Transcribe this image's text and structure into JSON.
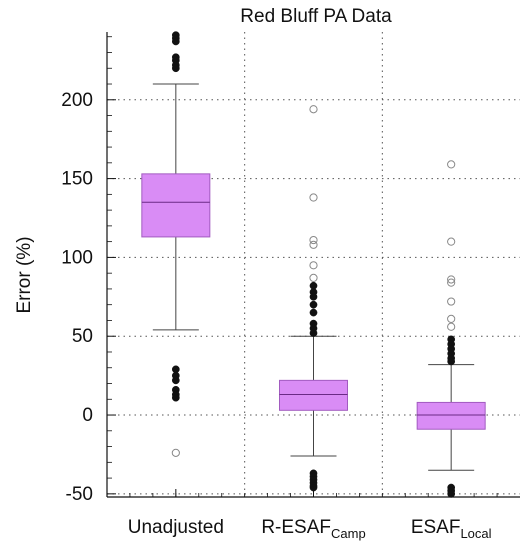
{
  "chart_data": {
    "type": "boxplot",
    "title": "Red Bluff PA Data",
    "ylabel": "Error (%)",
    "xlabel": "",
    "ylim": [
      -52,
      243
    ],
    "yticks": [
      -50,
      0,
      50,
      100,
      150,
      200
    ],
    "grid": true,
    "box_color": "#d98cf5",
    "box_edge_color": "#a25bc0",
    "categories": [
      {
        "main": "Unadjusted",
        "sub": ""
      },
      {
        "main": "R-ESAF",
        "sub": "Camp"
      },
      {
        "main": "ESAF",
        "sub": "Local"
      }
    ],
    "boxes": [
      {
        "q1": 113,
        "median": 135,
        "q3": 153,
        "whisker_low": 54,
        "whisker_high": 210,
        "filled_outliers": [
          241,
          239,
          237,
          227,
          225,
          222,
          220,
          29,
          25,
          22,
          16,
          13,
          11
        ],
        "open_outliers": [
          -24
        ]
      },
      {
        "q1": 3,
        "median": 13,
        "q3": 22,
        "whisker_low": -26,
        "whisker_high": 50,
        "filled_outliers": [
          82,
          78,
          75,
          70,
          65,
          58,
          55,
          52,
          -37,
          -39,
          -41,
          -43,
          -45,
          -46
        ],
        "open_outliers": [
          194,
          138,
          111,
          108,
          95,
          87
        ]
      },
      {
        "q1": -9,
        "median": 0,
        "q3": 8,
        "whisker_low": -35,
        "whisker_high": 32,
        "filled_outliers": [
          48,
          45,
          42,
          39,
          36,
          34,
          -46,
          -48,
          -50
        ],
        "open_outliers": [
          159,
          110,
          86,
          84,
          72,
          61,
          56
        ]
      }
    ]
  }
}
